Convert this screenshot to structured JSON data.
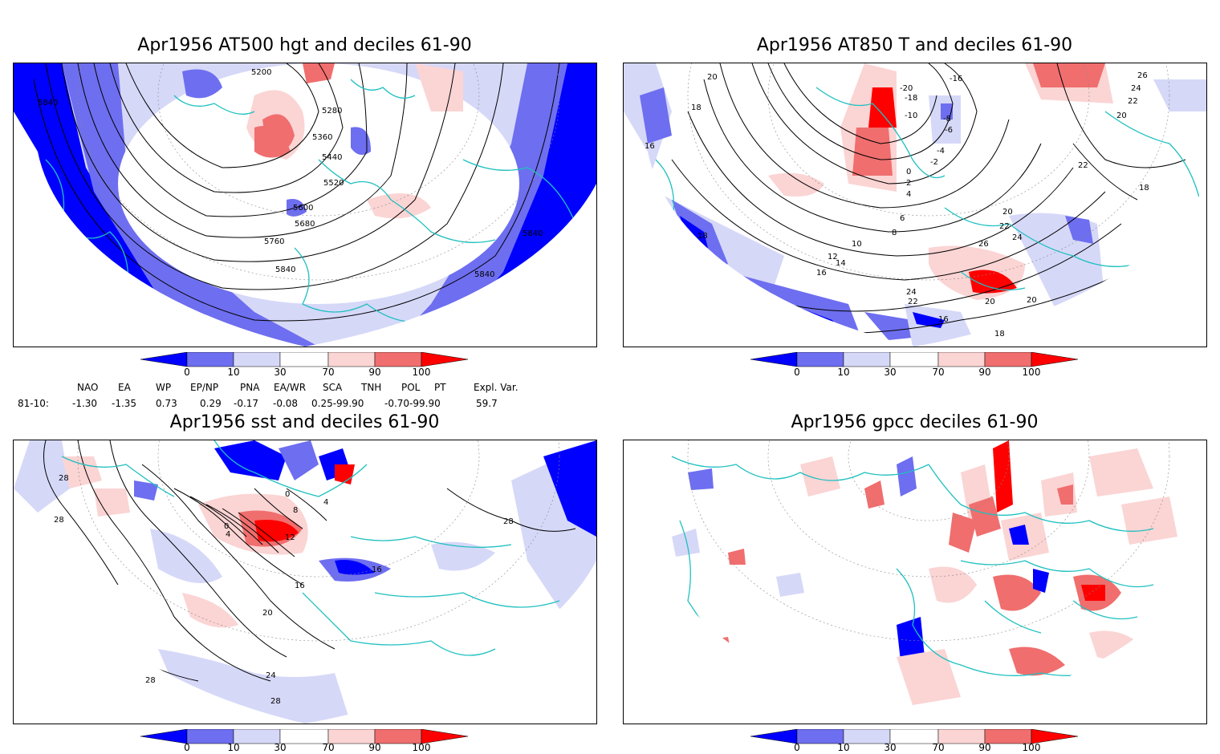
{
  "panels": [
    {
      "id": "hgt",
      "title": "Apr1956 AT500 hgt and deciles 61-90",
      "contour_labels": [
        "5200",
        "5280",
        "5360",
        "5440",
        "5520",
        "5600",
        "5680",
        "5760",
        "5840",
        "5840",
        "5840",
        "5840"
      ]
    },
    {
      "id": "t850",
      "title": "Apr1956 AT850 T and deciles 61-90",
      "contour_labels": [
        "20",
        "18",
        "16",
        "-20",
        "-18",
        "-16",
        "-10",
        "-8",
        "-6",
        "-4",
        "-2",
        "0",
        "2",
        "4",
        "6",
        "8",
        "10",
        "12",
        "14",
        "16",
        "18",
        "20",
        "22",
        "24",
        "26",
        "22",
        "24",
        "26",
        "22",
        "20",
        "18",
        "16",
        "24",
        "22",
        "20",
        "20",
        "18"
      ]
    },
    {
      "id": "sst",
      "title": "Apr1956 sst and deciles 61-90",
      "contour_labels": [
        "28",
        "28",
        "0",
        "4",
        "8",
        "12",
        "0",
        "4",
        "16",
        "16",
        "20",
        "24",
        "28",
        "28",
        "28"
      ]
    },
    {
      "id": "gpcc",
      "title": "Apr1956 gpcc deciles 61-90",
      "contour_labels": []
    }
  ],
  "colorbar": {
    "ticks": [
      "0",
      "10",
      "30",
      "70",
      "90",
      "100"
    ],
    "colors": {
      "deep_blue": "#0000ff",
      "mid_blue": "#6e6ef0",
      "light_blue": "#d6d8f8",
      "white": "#ffffff",
      "light_red": "#fbd4d4",
      "mid_red": "#f06e6e",
      "deep_red": "#ff0000"
    }
  },
  "indices": {
    "headers": [
      "NAO",
      "EA",
      "WP",
      "EP/NP",
      "PNA",
      "EA/WR",
      "SCA",
      "TNH",
      "POL",
      "PT",
      "Expl. Var."
    ],
    "row_label": "81-10:",
    "values": [
      "-1.30",
      "-1.35",
      "0.73",
      "0.29",
      "-0.17",
      "-0.08",
      "0.25-99.90",
      "-0.70-99.90",
      "59.7"
    ]
  },
  "colors": {
    "coast": "#20c0c0",
    "contour": "#000000",
    "grid": "#888888"
  }
}
